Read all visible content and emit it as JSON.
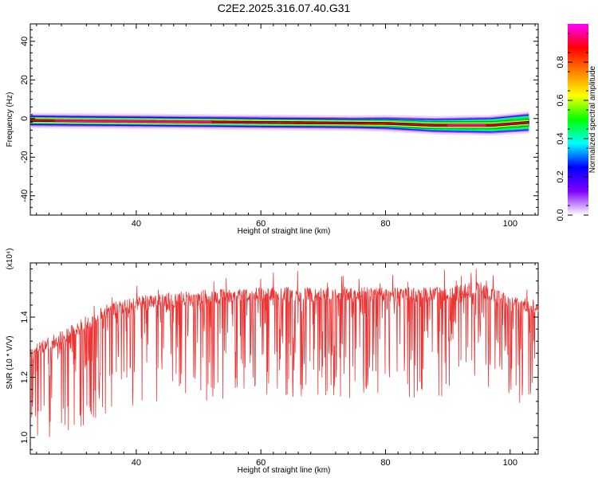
{
  "chart_data": [
    {
      "type": "heatmap",
      "title": "C2E2.2025.316.07.40.G31",
      "xlabel": "Height of straight line (km)",
      "ylabel": "Frequency (Hz)",
      "xlim": [
        23,
        104.5
      ],
      "ylim": [
        -50,
        49
      ],
      "x_ticks": [
        40,
        60,
        80,
        100
      ],
      "y_ticks": [
        -40,
        -20,
        0,
        20,
        40
      ],
      "colorbar": {
        "label": "Normalized spectral amplitude",
        "range": [
          0,
          1
        ],
        "ticks": [
          0.0,
          0.2,
          0.4,
          0.6,
          0.8
        ],
        "colors": [
          "#ffffff",
          "#8000ff",
          "#0000ff",
          "#00ffff",
          "#00ff00",
          "#ffff00",
          "#ff8000",
          "#ff0000",
          "#ff00ff"
        ]
      },
      "band": {
        "center_frequency": [
          {
            "x": 23,
            "y": -1
          },
          {
            "x": 60,
            "y": -2
          },
          {
            "x": 80,
            "y": -2.5
          },
          {
            "x": 88,
            "y": -3.5
          },
          {
            "x": 97,
            "y": -3.5
          },
          {
            "x": 103,
            "y": -2
          }
        ]
      }
    },
    {
      "type": "line",
      "xlabel": "Height of straight line (km)",
      "ylabel": "SNR (10 * V/V)",
      "y_multiplier": "(x10⁴)",
      "xlim": [
        23,
        104.5
      ],
      "ylim": [
        0.945,
        1.58
      ],
      "x_ticks": [
        40,
        60,
        80,
        100
      ],
      "y_ticks": [
        1.0,
        1.2,
        1.4
      ],
      "series": [
        {
          "color": "#ee3333",
          "trend": [
            {
              "x": 23,
              "y": 1.3
            },
            {
              "x": 30,
              "y": 1.38
            },
            {
              "x": 35,
              "y": 1.44
            },
            {
              "x": 40,
              "y": 1.47
            },
            {
              "x": 50,
              "y": 1.49
            },
            {
              "x": 60,
              "y": 1.5
            },
            {
              "x": 70,
              "y": 1.5
            },
            {
              "x": 80,
              "y": 1.5
            },
            {
              "x": 90,
              "y": 1.5
            },
            {
              "x": 95,
              "y": 1.52
            },
            {
              "x": 100,
              "y": 1.47
            },
            {
              "x": 104.5,
              "y": 1.46
            }
          ]
        }
      ]
    }
  ]
}
